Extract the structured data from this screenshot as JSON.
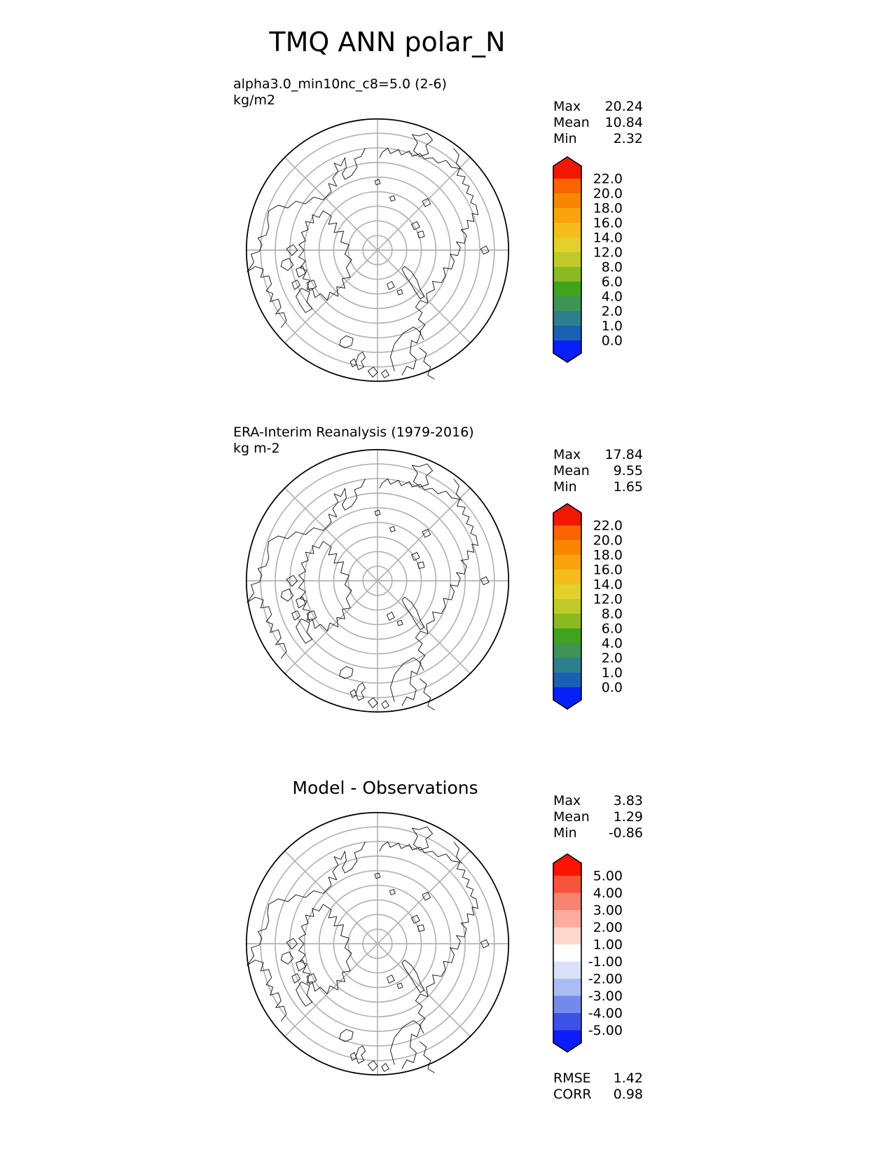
{
  "title": "TMQ ANN polar_N",
  "panels": [
    {
      "name": "model",
      "heading_lines": [
        "alpha3.0_min10nc_c8=5.0 (2-6)",
        "kg/m2"
      ],
      "stats": [
        {
          "label": "Max",
          "value": "20.24"
        },
        {
          "label": "Mean",
          "value": "10.84"
        },
        {
          "label": "Min",
          "value": "2.32"
        }
      ],
      "colorbar": {
        "tick_labels": [
          "22.0",
          "20.0",
          "18.0",
          "16.0",
          "14.0",
          "12.0",
          "8.0",
          "6.0",
          "4.0",
          "2.0",
          "1.0",
          "0.0"
        ],
        "cap_top_color": "#F21800",
        "cap_bottom_color": "#0820F8",
        "band_colors": [
          "#F96400",
          "#FA8600",
          "#FBA30D",
          "#F4BD1C",
          "#E3D02A",
          "#BFCA29",
          "#8ABA1F",
          "#41A31D",
          "#3E9355",
          "#2C7F8E",
          "#1A5FB5"
        ]
      }
    },
    {
      "name": "observations",
      "heading_lines": [
        "ERA-Interim Reanalysis (1979-2016)",
        "kg m-2"
      ],
      "stats": [
        {
          "label": "Max",
          "value": "17.84"
        },
        {
          "label": "Mean",
          "value": "9.55"
        },
        {
          "label": "Min",
          "value": "1.65"
        }
      ],
      "colorbar": {
        "tick_labels": [
          "22.0",
          "20.0",
          "18.0",
          "16.0",
          "14.0",
          "12.0",
          "8.0",
          "6.0",
          "4.0",
          "2.0",
          "1.0",
          "0.0"
        ],
        "cap_top_color": "#F21800",
        "cap_bottom_color": "#0820F8",
        "band_colors": [
          "#F96400",
          "#FA8600",
          "#FBA30D",
          "#F4BD1C",
          "#E3D02A",
          "#BFCA29",
          "#8ABA1F",
          "#41A31D",
          "#3E9355",
          "#2C7F8E",
          "#1A5FB5"
        ]
      }
    },
    {
      "name": "difference",
      "heading": "Model - Observations",
      "stats": [
        {
          "label": "Max",
          "value": "3.83"
        },
        {
          "label": "Mean",
          "value": "1.29"
        },
        {
          "label": "Min",
          "value": "-0.86"
        }
      ],
      "colorbar": {
        "tick_labels": [
          "5.00",
          "4.00",
          "3.00",
          "2.00",
          "1.00",
          "-1.00",
          "-2.00",
          "-3.00",
          "-4.00",
          "-5.00"
        ],
        "cap_top_color": "#FB1400",
        "cap_bottom_color": "#0B1DF9",
        "band_colors": [
          "#F8533D",
          "#F98271",
          "#FBAC9D",
          "#FDD6CC",
          "#FFFFFF",
          "#D9E1FB",
          "#A9BCF4",
          "#7389EC",
          "#3C52E6"
        ]
      },
      "footer_stats": [
        {
          "label": "RMSE",
          "value": "1.42"
        },
        {
          "label": "CORR",
          "value": "0.98"
        }
      ]
    }
  ],
  "chart_data": [
    {
      "type": "heatmap",
      "subtype": "north-polar-stereographic-map",
      "title": "alpha3.0_min10nc_c8=5.0 (2-6)",
      "units": "kg/m2",
      "stats": {
        "max": 20.24,
        "mean": 10.84,
        "min": 2.32
      },
      "colorbar_levels": [
        0.0,
        1.0,
        2.0,
        4.0,
        6.0,
        8.0,
        12.0,
        14.0,
        16.0,
        18.0,
        20.0,
        22.0
      ],
      "legend_position": "right"
    },
    {
      "type": "heatmap",
      "subtype": "north-polar-stereographic-map",
      "title": "ERA-Interim Reanalysis (1979-2016)",
      "units": "kg m-2",
      "stats": {
        "max": 17.84,
        "mean": 9.55,
        "min": 1.65
      },
      "colorbar_levels": [
        0.0,
        1.0,
        2.0,
        4.0,
        6.0,
        8.0,
        12.0,
        14.0,
        16.0,
        18.0,
        20.0,
        22.0
      ],
      "legend_position": "right"
    },
    {
      "type": "heatmap",
      "subtype": "north-polar-stereographic-map",
      "title": "Model - Observations",
      "stats": {
        "max": 3.83,
        "mean": 1.29,
        "min": -0.86,
        "rmse": 1.42,
        "corr": 0.98
      },
      "colorbar_levels": [
        -5.0,
        -4.0,
        -3.0,
        -2.0,
        -1.0,
        1.0,
        2.0,
        3.0,
        4.0,
        5.0
      ],
      "legend_position": "right"
    }
  ]
}
